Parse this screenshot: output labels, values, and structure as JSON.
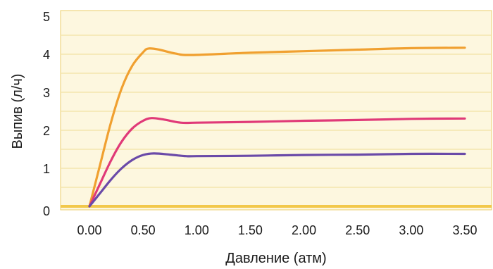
{
  "chart_data": {
    "type": "line",
    "xlabel": "Давление (атм)",
    "ylabel": "Выпив (л/ч)",
    "xlim": [
      -0.3,
      3.5
    ],
    "ylim": [
      0,
      5
    ],
    "x_ticks": [
      "0.00",
      "0.50",
      "1.00",
      "1.50",
      "2.00",
      "2.50",
      "3.00",
      "3.50"
    ],
    "x_tick_values": [
      0,
      0.5,
      1.0,
      1.5,
      2.0,
      2.5,
      3.0,
      3.5
    ],
    "y_ticks": [
      "0",
      "1",
      "2",
      "3",
      "4",
      "5"
    ],
    "y_tick_values": [
      0,
      1,
      2,
      3,
      4,
      5
    ],
    "grid": "horizontal",
    "series": [
      {
        "color": "#f0a030",
        "points": [
          [
            0,
            0
          ],
          [
            0.1,
            1.1
          ],
          [
            0.2,
            2.2
          ],
          [
            0.3,
            3.1
          ],
          [
            0.4,
            3.7
          ],
          [
            0.5,
            4.05
          ],
          [
            0.55,
            4.15
          ],
          [
            0.65,
            4.12
          ],
          [
            0.8,
            4.02
          ],
          [
            0.95,
            3.98
          ],
          [
            1.5,
            4.04
          ],
          [
            2.0,
            4.08
          ],
          [
            2.5,
            4.12
          ],
          [
            3.0,
            4.16
          ],
          [
            3.5,
            4.17
          ]
        ]
      },
      {
        "color": "#e03a78",
        "points": [
          [
            0,
            0
          ],
          [
            0.1,
            0.6
          ],
          [
            0.2,
            1.2
          ],
          [
            0.3,
            1.7
          ],
          [
            0.4,
            2.05
          ],
          [
            0.5,
            2.25
          ],
          [
            0.58,
            2.32
          ],
          [
            0.7,
            2.28
          ],
          [
            0.85,
            2.2
          ],
          [
            1.0,
            2.2
          ],
          [
            1.5,
            2.22
          ],
          [
            2.0,
            2.25
          ],
          [
            2.5,
            2.27
          ],
          [
            3.0,
            2.3
          ],
          [
            3.5,
            2.31
          ]
        ]
      },
      {
        "color": "#6a4aa8",
        "points": [
          [
            0,
            0
          ],
          [
            0.1,
            0.35
          ],
          [
            0.2,
            0.7
          ],
          [
            0.3,
            1.0
          ],
          [
            0.4,
            1.22
          ],
          [
            0.5,
            1.35
          ],
          [
            0.6,
            1.39
          ],
          [
            0.75,
            1.36
          ],
          [
            0.9,
            1.32
          ],
          [
            1.0,
            1.32
          ],
          [
            1.5,
            1.33
          ],
          [
            2.0,
            1.35
          ],
          [
            2.5,
            1.36
          ],
          [
            3.0,
            1.38
          ],
          [
            3.5,
            1.38
          ]
        ]
      }
    ]
  },
  "colors": {
    "plot_background": "#fdf7df",
    "gridline": "#f3e1a3",
    "baseline": "#f2c84a",
    "plot_border": "#eccf6e"
  }
}
